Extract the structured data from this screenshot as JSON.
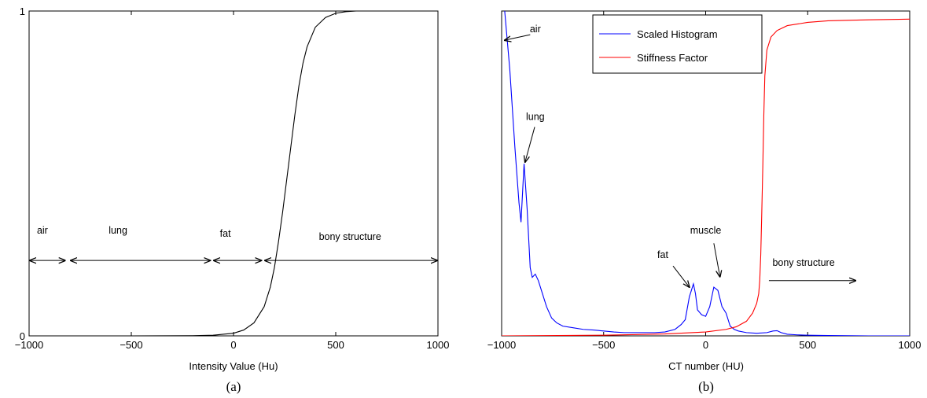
{
  "chart_data": [
    {
      "type": "line",
      "panel_caption": "(a)",
      "xlabel": "Intensity Value (Hu)",
      "ylabel": "",
      "xlim": [
        -1000,
        1000
      ],
      "ylim": [
        0,
        1
      ],
      "x_ticks": [
        -1000,
        -500,
        0,
        500,
        1000
      ],
      "x_tick_labels": [
        "−1000",
        "−500",
        "0",
        "500",
        "1000"
      ],
      "y_ticks": [
        0,
        1
      ],
      "y_tick_labels": [
        "0",
        "1"
      ],
      "grid": false,
      "series": [
        {
          "color": "#000000",
          "x": [
            -1000,
            -500,
            -200,
            -100,
            0,
            50,
            100,
            150,
            180,
            200,
            220,
            240,
            260,
            280,
            300,
            320,
            340,
            360,
            400,
            450,
            500,
            550,
            600,
            1000
          ],
          "y": [
            0,
            0,
            0.0005,
            0.002,
            0.008,
            0.018,
            0.04,
            0.09,
            0.15,
            0.21,
            0.29,
            0.38,
            0.48,
            0.58,
            0.68,
            0.77,
            0.84,
            0.89,
            0.95,
            0.98,
            0.993,
            0.998,
            1.0,
            1.0
          ]
        }
      ],
      "annotations": [
        {
          "text": "air",
          "x": -935,
          "y": 0.315,
          "span": [
            -1000,
            -820
          ],
          "arrow_y": 0.232
        },
        {
          "text": "lung",
          "x": -565,
          "y": 0.315,
          "span": [
            -800,
            -110
          ],
          "arrow_y": 0.232
        },
        {
          "text": "fat",
          "x": -40,
          "y": 0.305,
          "span": [
            -100,
            140
          ],
          "arrow_y": 0.232
        },
        {
          "text": "bony structure",
          "x": 570,
          "y": 0.295,
          "span": [
            150,
            1000
          ],
          "arrow_y": 0.232
        }
      ]
    },
    {
      "type": "line",
      "panel_caption": "(b)",
      "xlabel": "CT number (HU)",
      "ylabel": "",
      "xlim": [
        -1000,
        1000
      ],
      "ylim": [
        0,
        1
      ],
      "x_ticks": [
        -1000,
        -500,
        0,
        500,
        1000
      ],
      "x_tick_labels": [
        "−1000",
        "−500",
        "0",
        "500",
        "1000"
      ],
      "grid": false,
      "legend_position": "top",
      "series": [
        {
          "name": "Scaled Histogram",
          "color": "#0000ff",
          "x": [
            -985,
            -960,
            -935,
            -915,
            -905,
            -890,
            -875,
            -860,
            -850,
            -835,
            -820,
            -800,
            -780,
            -755,
            -730,
            -700,
            -650,
            -600,
            -550,
            -500,
            -450,
            -400,
            -350,
            -300,
            -250,
            -200,
            -150,
            -120,
            -100,
            -80,
            -60,
            -50,
            -40,
            -20,
            0,
            20,
            40,
            60,
            80,
            100,
            120,
            140,
            160,
            200,
            250,
            300,
            330,
            350,
            370,
            400,
            450,
            500,
            600,
            800,
            1000
          ],
          "y": [
            1.0,
            0.82,
            0.58,
            0.41,
            0.35,
            0.53,
            0.39,
            0.21,
            0.18,
            0.19,
            0.17,
            0.13,
            0.09,
            0.055,
            0.04,
            0.03,
            0.025,
            0.02,
            0.018,
            0.015,
            0.012,
            0.01,
            0.01,
            0.01,
            0.01,
            0.012,
            0.02,
            0.035,
            0.05,
            0.12,
            0.16,
            0.13,
            0.08,
            0.065,
            0.06,
            0.09,
            0.15,
            0.14,
            0.09,
            0.07,
            0.03,
            0.02,
            0.015,
            0.01,
            0.008,
            0.01,
            0.015,
            0.016,
            0.01,
            0.005,
            0.003,
            0.002,
            0.001,
            0.0,
            0.0
          ]
        },
        {
          "name": "Stiffness Factor",
          "color": "#ff0000",
          "x": [
            -1000,
            -500,
            -200,
            0,
            100,
            150,
            200,
            230,
            250,
            260,
            265,
            270,
            275,
            280,
            285,
            290,
            300,
            320,
            350,
            400,
            500,
            600,
            800,
            1000
          ],
          "y": [
            0.0,
            0.002,
            0.006,
            0.012,
            0.02,
            0.028,
            0.045,
            0.07,
            0.1,
            0.13,
            0.17,
            0.25,
            0.38,
            0.52,
            0.68,
            0.8,
            0.88,
            0.92,
            0.94,
            0.955,
            0.965,
            0.97,
            0.973,
            0.975
          ]
        }
      ],
      "annotations": [
        {
          "text": "air",
          "x": -835,
          "y": 0.935,
          "arrow_from": [
            -860,
            0.927
          ],
          "arrow_to": [
            -985,
            0.91
          ]
        },
        {
          "text": "lung",
          "x": -835,
          "y": 0.665,
          "arrow_from": [
            -838,
            0.643
          ],
          "arrow_to": [
            -885,
            0.535
          ]
        },
        {
          "text": "fat",
          "x": -210,
          "y": 0.24,
          "arrow_from": [
            -160,
            0.215
          ],
          "arrow_to": [
            -80,
            0.15
          ]
        },
        {
          "text": "muscle",
          "x": 0,
          "y": 0.315,
          "arrow_from": [
            40,
            0.285
          ],
          "arrow_to": [
            70,
            0.182
          ]
        },
        {
          "text": "bony structure",
          "x": 480,
          "y": 0.215,
          "arrow_from": [
            310,
            0.17
          ],
          "arrow_to": [
            735,
            0.17
          ]
        }
      ]
    }
  ]
}
